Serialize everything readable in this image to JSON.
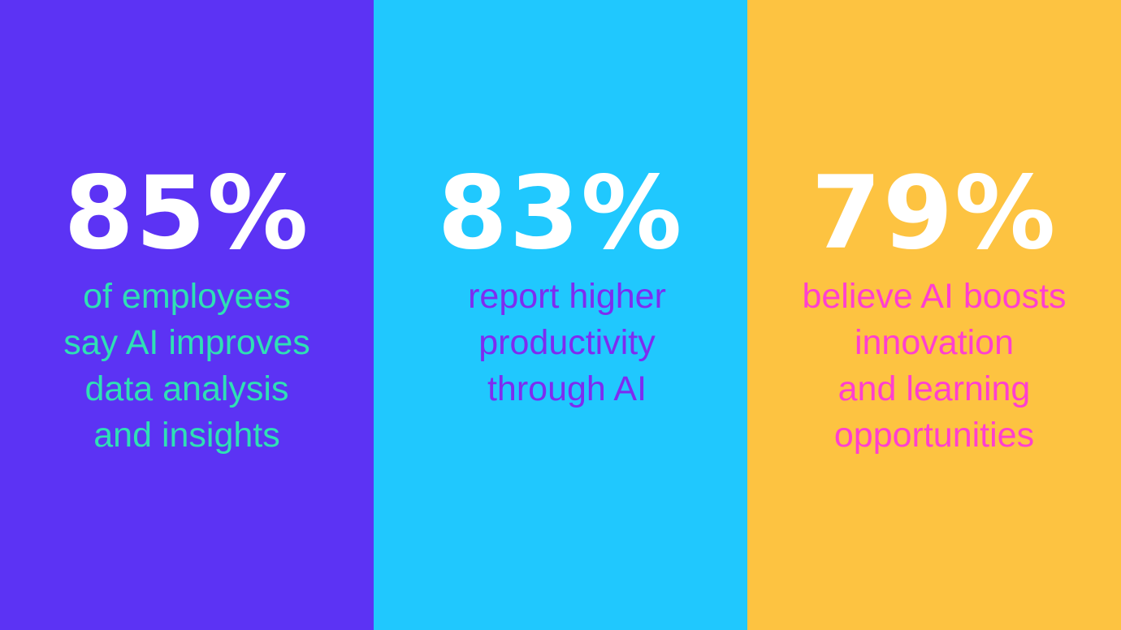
{
  "panels": [
    {
      "stat": "85%",
      "lines": [
        "of employees",
        "say AI improves",
        "data analysis",
        "and insights"
      ]
    },
    {
      "stat": "83%",
      "lines": [
        "report higher",
        "productivity",
        "through AI"
      ]
    },
    {
      "stat": "79%",
      "lines": [
        "believe AI boosts",
        "innovation",
        "and learning",
        "opportunities"
      ]
    }
  ]
}
